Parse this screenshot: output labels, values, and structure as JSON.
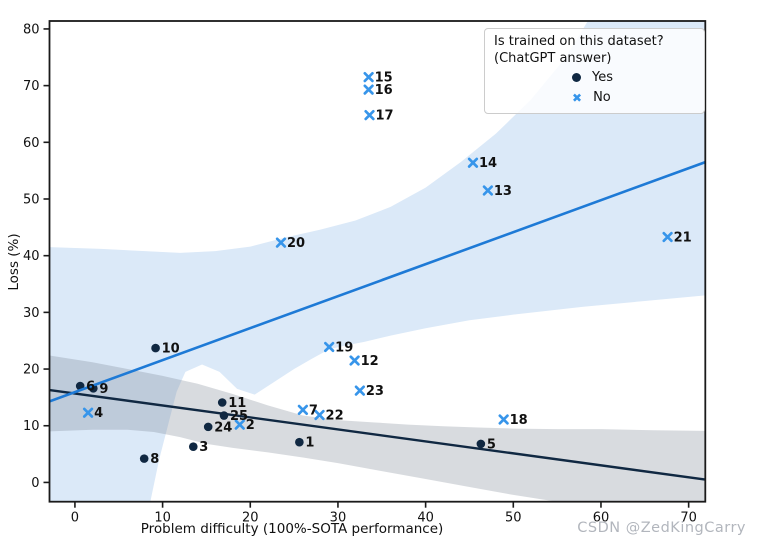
{
  "watermark": "CSDN @ZedKingCarry",
  "colors": {
    "yes_marker": "#102842",
    "no_marker": "#3795ea",
    "no_regression_line": "#1e7ad6",
    "yes_regression_line": "#102842",
    "no_band_fill": "#dbe9f8",
    "yes_band_fill": "rgba(115,125,140,0.28)",
    "axis": "#1a1a1a",
    "point_label": "#111111",
    "watermark_color": "#b2b6bd"
  },
  "legend": {
    "title_line1": "Is trained on this dataset?",
    "title_line2": "(ChatGPT answer)",
    "items": [
      {
        "label": "Yes",
        "marker": "dot"
      },
      {
        "label": "No",
        "marker": "x"
      }
    ]
  },
  "chart_data": {
    "type": "scatter",
    "title": "",
    "xlabel": "Problem difficulty (100%-SOTA performance)",
    "ylabel": "Loss (%)",
    "xlim": [
      -2.9,
      71.9
    ],
    "ylim": [
      -3.4,
      81.4
    ],
    "xticks": [
      0,
      10,
      20,
      30,
      40,
      50,
      60,
      70
    ],
    "yticks": [
      0,
      10,
      20,
      30,
      40,
      50,
      60,
      70,
      80
    ],
    "grid": false,
    "legend_position": "upper right",
    "series": [
      {
        "name": "Yes",
        "marker": "dot",
        "color": "#102842",
        "points": [
          {
            "label": "1",
            "x": 25.6,
            "y": 7.1
          },
          {
            "label": "3",
            "x": 13.5,
            "y": 6.3
          },
          {
            "label": "5",
            "x": 46.3,
            "y": 6.8
          },
          {
            "label": "6",
            "x": 0.6,
            "y": 17.0
          },
          {
            "label": "8",
            "x": 7.9,
            "y": 4.2
          },
          {
            "label": "9",
            "x": 2.1,
            "y": 16.6
          },
          {
            "label": "10",
            "x": 9.2,
            "y": 23.7
          },
          {
            "label": "11",
            "x": 16.8,
            "y": 14.1
          },
          {
            "label": "24",
            "x": 15.2,
            "y": 9.8
          },
          {
            "label": "25",
            "x": 17.0,
            "y": 11.8
          }
        ]
      },
      {
        "name": "No",
        "marker": "x",
        "color": "#3795ea",
        "points": [
          {
            "label": "2",
            "x": 18.8,
            "y": 10.2
          },
          {
            "label": "4",
            "x": 1.5,
            "y": 12.3
          },
          {
            "label": "7",
            "x": 26.0,
            "y": 12.8
          },
          {
            "label": "12",
            "x": 31.9,
            "y": 21.5
          },
          {
            "label": "13",
            "x": 47.1,
            "y": 51.5
          },
          {
            "label": "14",
            "x": 45.4,
            "y": 56.4
          },
          {
            "label": "15",
            "x": 33.5,
            "y": 71.5
          },
          {
            "label": "16",
            "x": 33.5,
            "y": 69.3
          },
          {
            "label": "17",
            "x": 33.6,
            "y": 64.8
          },
          {
            "label": "18",
            "x": 48.9,
            "y": 11.1
          },
          {
            "label": "19",
            "x": 29.0,
            "y": 23.9
          },
          {
            "label": "20",
            "x": 23.5,
            "y": 42.3
          },
          {
            "label": "21",
            "x": 67.6,
            "y": 43.3
          },
          {
            "label": "22",
            "x": 27.9,
            "y": 11.9
          },
          {
            "label": "23",
            "x": 32.5,
            "y": 16.2
          }
        ]
      }
    ],
    "regressions": [
      {
        "series": "No",
        "color": "#1e7ad6",
        "line_width": 2.6,
        "endpoints": [
          [
            -2.9,
            14.3
          ],
          [
            71.9,
            56.5
          ]
        ],
        "band_fill": "#dbe9f8",
        "band": [
          [
            -2.9,
            41.5
          ],
          [
            3,
            41.2
          ],
          [
            8,
            40.8
          ],
          [
            12,
            40.5
          ],
          [
            16,
            40.8
          ],
          [
            20,
            41.6
          ],
          [
            24,
            43.2
          ],
          [
            28,
            44.6
          ],
          [
            32,
            46.2
          ],
          [
            36,
            48.6
          ],
          [
            40,
            52
          ],
          [
            44,
            56.5
          ],
          [
            48,
            61.5
          ],
          [
            52,
            67.5
          ],
          [
            56,
            75
          ],
          [
            58.5,
            81.4
          ],
          [
            71.9,
            81.4
          ],
          [
            71.9,
            33
          ],
          [
            65,
            32
          ],
          [
            58,
            31
          ],
          [
            50,
            29.6
          ],
          [
            45,
            28.6
          ],
          [
            40,
            27.2
          ],
          [
            36,
            25.9
          ],
          [
            33,
            24.8
          ],
          [
            31,
            24.2
          ],
          [
            29,
            23.5
          ],
          [
            27,
            21.8
          ],
          [
            25,
            20
          ],
          [
            22.5,
            17.5
          ],
          [
            20.5,
            15.5
          ],
          [
            18.5,
            16.5
          ],
          [
            16.5,
            19.5
          ],
          [
            14.5,
            20.8
          ],
          [
            12.6,
            19.5
          ],
          [
            11.6,
            16
          ],
          [
            10.6,
            10
          ],
          [
            9.6,
            4
          ],
          [
            8.6,
            -3.4
          ],
          [
            -2.9,
            -3.4
          ]
        ]
      },
      {
        "series": "Yes",
        "color": "#102842",
        "line_width": 2.4,
        "endpoints": [
          [
            -2.9,
            16.3
          ],
          [
            71.9,
            0.5
          ]
        ],
        "band_fill": "rgba(115,125,140,0.28)",
        "band": [
          [
            -2.9,
            22.4
          ],
          [
            2,
            21.2
          ],
          [
            6,
            20
          ],
          [
            10,
            18.8
          ],
          [
            14,
            17.4
          ],
          [
            18,
            15.6
          ],
          [
            22,
            13.6
          ],
          [
            26,
            11.8
          ],
          [
            30,
            11
          ],
          [
            34,
            10.6
          ],
          [
            38,
            10.2
          ],
          [
            42,
            9.9
          ],
          [
            46,
            9.7
          ],
          [
            50,
            9.5
          ],
          [
            55,
            9.4
          ],
          [
            60,
            9.4
          ],
          [
            66,
            9.2
          ],
          [
            71.9,
            9.1
          ],
          [
            71.9,
            -3.4
          ],
          [
            55,
            -3.4
          ],
          [
            50,
            -2.2
          ],
          [
            45,
            -0.8
          ],
          [
            40,
            0.6
          ],
          [
            35,
            2
          ],
          [
            30,
            3.4
          ],
          [
            26,
            4.4
          ],
          [
            22,
            5.3
          ],
          [
            18,
            6.1
          ],
          [
            15,
            6.8
          ],
          [
            12,
            8
          ],
          [
            9,
            8.9
          ],
          [
            6,
            9.3
          ],
          [
            2,
            9.3
          ],
          [
            -2.9,
            9
          ]
        ]
      }
    ]
  }
}
